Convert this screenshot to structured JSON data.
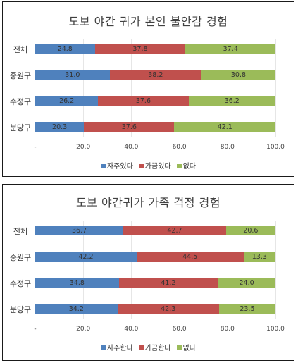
{
  "chart_data": [
    {
      "type": "bar",
      "orientation": "horizontal",
      "stacked": true,
      "title": "도보 야간 귀가 본인 불안감 경험",
      "categories": [
        "전체",
        "중원구",
        "수정구",
        "분당구"
      ],
      "series": [
        {
          "name": "자주있다",
          "color": "#4f81bd",
          "values": [
            24.8,
            31.0,
            26.2,
            20.3
          ]
        },
        {
          "name": "가끔있다",
          "color": "#c0504d",
          "values": [
            37.8,
            38.2,
            37.6,
            37.6
          ]
        },
        {
          "name": "없다",
          "color": "#9bbb59",
          "values": [
            37.4,
            30.8,
            36.2,
            42.1
          ]
        }
      ],
      "xlim": [
        0,
        100
      ],
      "xticks": [
        "-",
        "20.0",
        "40.0",
        "60.0",
        "80.0",
        "100.0"
      ],
      "legend_position": "bottom",
      "grid": false
    },
    {
      "type": "bar",
      "orientation": "horizontal",
      "stacked": true,
      "title": "도보 야간귀가 가족 걱정 경험",
      "categories": [
        "전체",
        "중원구",
        "수정구",
        "분당구"
      ],
      "series": [
        {
          "name": "자주한다",
          "color": "#4f81bd",
          "values": [
            36.7,
            42.2,
            34.8,
            34.2
          ]
        },
        {
          "name": "가끔한다",
          "color": "#c0504d",
          "values": [
            42.7,
            44.5,
            41.2,
            42.3
          ]
        },
        {
          "name": "없다",
          "color": "#9bbb59",
          "values": [
            20.6,
            13.3,
            24.0,
            23.5
          ]
        }
      ],
      "xlim": [
        0,
        100
      ],
      "xticks": [
        "-",
        "20.0",
        "40.0",
        "60.0",
        "80.0",
        "100.0"
      ],
      "legend_position": "bottom",
      "grid": false
    }
  ]
}
